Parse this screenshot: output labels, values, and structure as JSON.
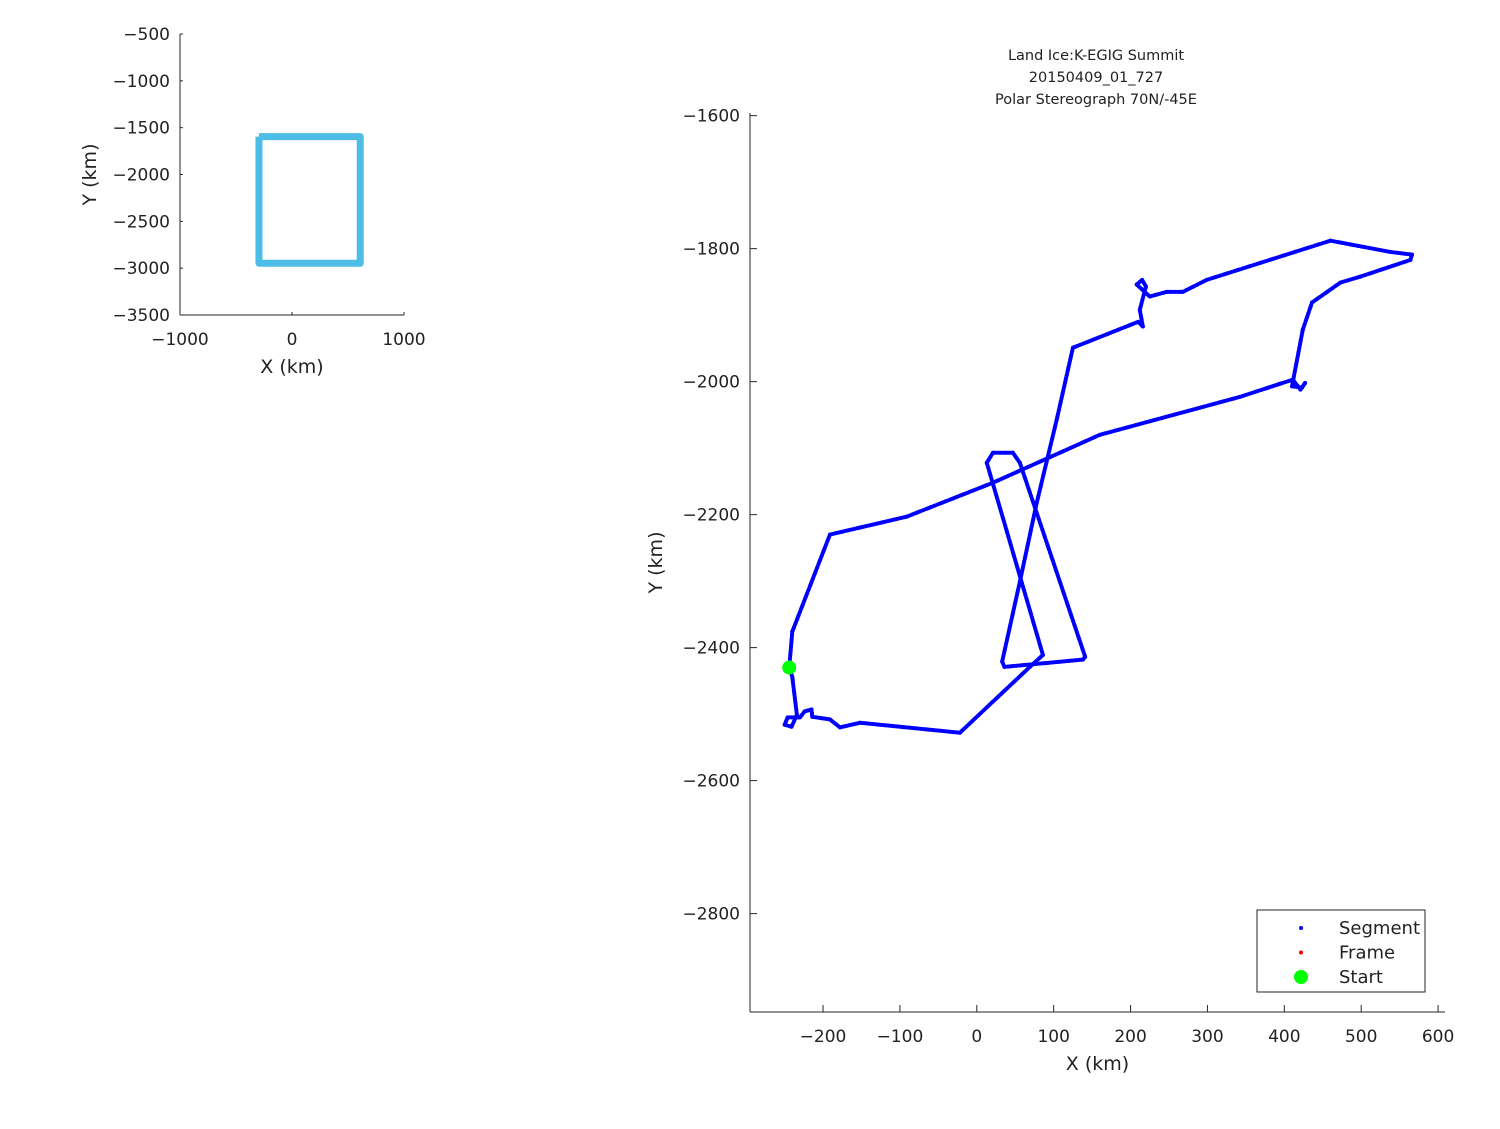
{
  "chart_data": [
    {
      "type": "line",
      "xlabel": "X (km)",
      "ylabel": "Y (km)",
      "xlim": [
        -1000,
        1000
      ],
      "ylim": [
        -3500,
        -500
      ],
      "xticks": [
        "−1000",
        "0",
        "1000"
      ],
      "xtick_values": [
        -1000,
        0,
        1000
      ],
      "yticks": [
        "−500",
        "−1000",
        "−1500",
        "−2000",
        "−2500",
        "−3000",
        "−3500"
      ],
      "ytick_values": [
        -500,
        -1000,
        -1500,
        -2000,
        -2500,
        -3000,
        -3500
      ],
      "grid": false,
      "series": [
        {
          "color": "#4dbde8",
          "x": [
            -295,
            609,
            609,
            -295,
            -295
          ],
          "y": [
            -1596,
            -1596,
            -2948,
            -2948,
            -1596
          ]
        }
      ]
    },
    {
      "type": "scatter",
      "title": [
        "Land Ice:K-EGIG Summit",
        "20150409_01_727",
        "Polar Stereograph 70N/-45E"
      ],
      "xlabel": "X (km)",
      "ylabel": "Y (km)",
      "xlim": [
        -295,
        609
      ],
      "ylim": [
        -2948,
        -1596
      ],
      "xticks": [
        "−200",
        "−100",
        "0",
        "100",
        "200",
        "300",
        "400",
        "500",
        "600"
      ],
      "xtick_values": [
        -200,
        -100,
        0,
        100,
        200,
        300,
        400,
        500,
        600
      ],
      "yticks": [
        "−1600",
        "−1800",
        "−2000",
        "−2200",
        "−2400",
        "−2600",
        "−2800"
      ],
      "ytick_values": [
        -1600,
        -1800,
        -2000,
        -2200,
        -2400,
        -2600,
        -2800
      ],
      "grid": false,
      "legend_position": "bottom-right",
      "legend": [
        {
          "name": "Segment",
          "color": "#0000ff",
          "marker": "dot"
        },
        {
          "name": "Frame",
          "color": "#ff0000",
          "marker": "dot"
        },
        {
          "name": "Start",
          "color": "#00ff00",
          "marker": "star"
        }
      ],
      "series": [
        {
          "name": "Segment",
          "color": "#0000ff",
          "x": [
            -244,
            -240,
            -191,
            -91,
            21,
            160,
            342,
            411,
            421,
            427,
            423,
            410,
            424,
            436,
            473,
            499,
            564,
            566,
            538,
            460,
            299,
            268,
            247,
            225,
            208,
            215,
            220,
            212,
            216,
            210,
            125,
            104,
            78,
            56,
            33,
            36,
            138,
            141,
            56,
            47,
            21,
            13,
            86,
            69,
            -22,
            -152,
            -178,
            -191,
            -214,
            -215,
            -224,
            -230,
            -246,
            -250,
            -241,
            -234,
            -240,
            -244
          ],
          "y": [
            -2430,
            -2376,
            -2230,
            -2203,
            -2152,
            -2080,
            -2023,
            -1997,
            -2012,
            -2002,
            -2009,
            -2007,
            -1922,
            -1881,
            -1851,
            -1842,
            -1817,
            -1809,
            -1805,
            -1788,
            -1847,
            -1865,
            -1865,
            -1872,
            -1854,
            -1847,
            -1857,
            -1892,
            -1917,
            -1910,
            -1949,
            -2057,
            -2182,
            -2301,
            -2421,
            -2429,
            -2418,
            -2414,
            -2122,
            -2107,
            -2107,
            -2122,
            -2411,
            -2429,
            -2528,
            -2513,
            -2520,
            -2508,
            -2504,
            -2493,
            -2496,
            -2505,
            -2505,
            -2516,
            -2519,
            -2501,
            -2444,
            -2430
          ]
        },
        {
          "name": "Start",
          "color": "#00ff00",
          "x": [
            -244
          ],
          "y": [
            -2430
          ]
        }
      ]
    }
  ]
}
